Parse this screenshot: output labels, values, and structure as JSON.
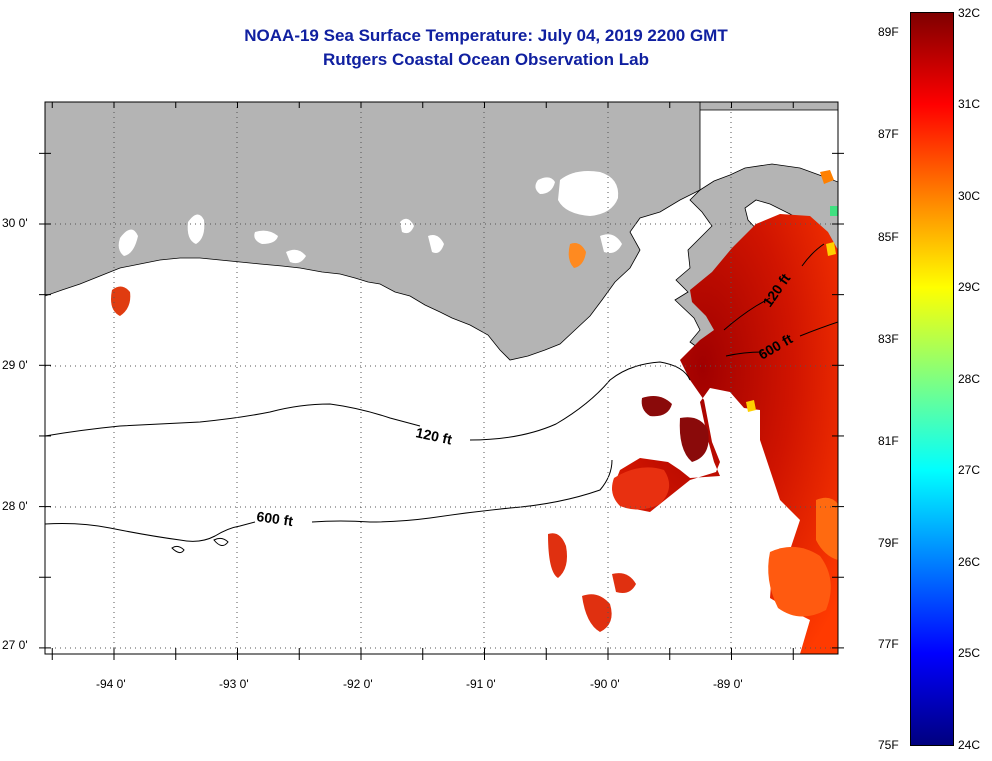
{
  "header": {
    "title": "NOAA-19 Sea Surface Temperature:  July 04, 2019 2200 GMT",
    "subtitle": "Rutgers Coastal Ocean Observation Lab"
  },
  "map": {
    "lat_range": [
      26.95,
      30.85
    ],
    "lon_range": [
      -94.6,
      -88.1
    ],
    "latitude_labels": [
      "30 0'",
      "29 0'",
      "28 0'",
      "27 0'"
    ],
    "longitude_labels": [
      "-94 0'",
      "-93 0'",
      "-92 0'",
      "-91 0'",
      "-90 0'",
      "-89 0'"
    ],
    "contour_labels": [
      "120 ft",
      "600 ft",
      "120 ft",
      "600 ft"
    ],
    "colors": {
      "land": "#b4b4b4",
      "frame": "#000000",
      "grid": "#555555",
      "title": "#1020a0"
    }
  },
  "colorbar": {
    "fahrenheit_labels": [
      "89F",
      "87F",
      "85F",
      "83F",
      "81F",
      "79F",
      "77F",
      "75F"
    ],
    "celsius_labels": [
      "32C",
      "31C",
      "30C",
      "29C",
      "28C",
      "27C",
      "26C",
      "25C",
      "24C"
    ],
    "range_c": [
      24,
      32
    ],
    "gradient_colors": [
      "#00007f",
      "#0000ff",
      "#0080ff",
      "#00ffff",
      "#80ff80",
      "#ffff00",
      "#ff8000",
      "#ff0000",
      "#7f0000"
    ]
  }
}
